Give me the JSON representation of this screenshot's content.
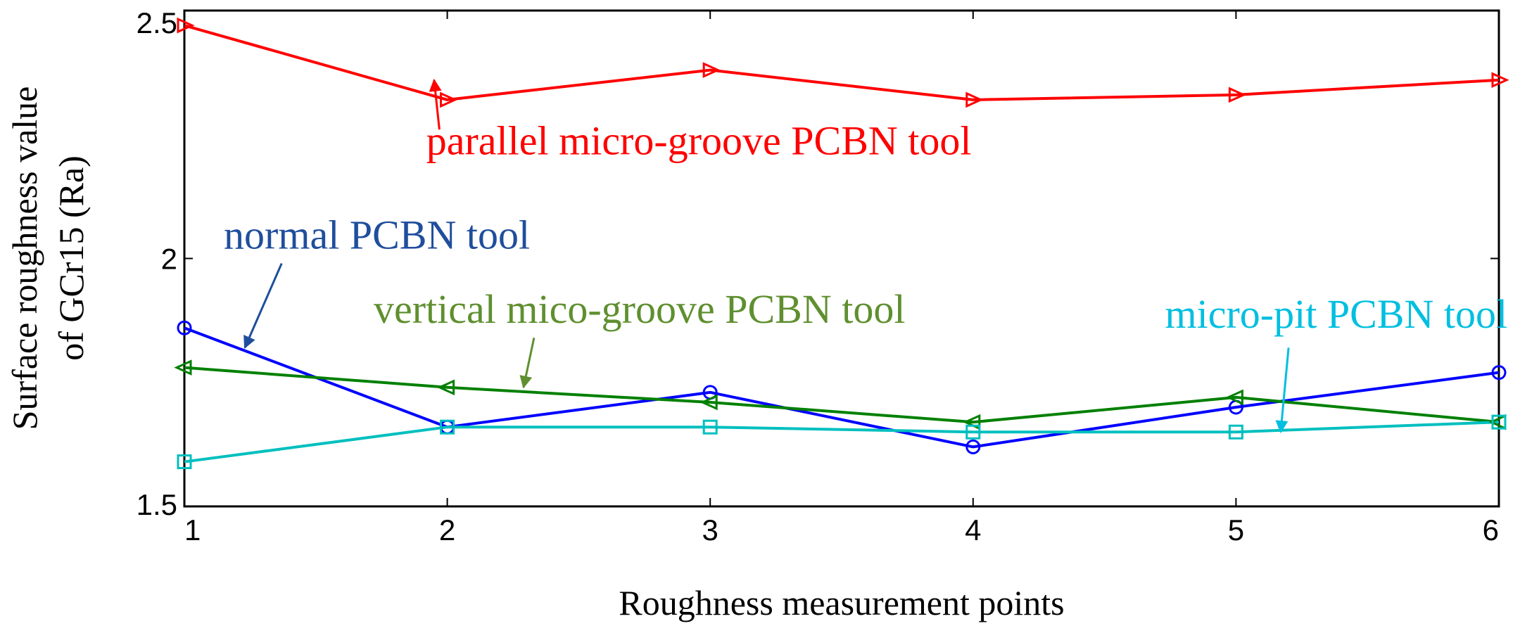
{
  "chart_data": {
    "type": "line",
    "title": "",
    "xlabel": "Roughness measurement points",
    "ylabel_line1": "Surface roughness value",
    "ylabel_line2": "of GCr15 (Ra)",
    "xlim": [
      1,
      6
    ],
    "ylim": [
      1.5,
      2.5
    ],
    "x": [
      1,
      2,
      3,
      4,
      5,
      6
    ],
    "x_ticks": [
      "1",
      "2",
      "3",
      "4",
      "5",
      "6"
    ],
    "y_ticks": [
      {
        "value": 1.5,
        "label": "1.5"
      },
      {
        "value": 2.0,
        "label": "2"
      },
      {
        "value": 2.5,
        "label": "2.5"
      }
    ],
    "grid": false,
    "series": [
      {
        "name": "parallel micro-groove PCBN tool",
        "color": "#ff0000",
        "marker": "triangle-right",
        "values": [
          2.47,
          2.32,
          2.38,
          2.32,
          2.33,
          2.36
        ],
        "label_at": [
          1.92,
          2.21
        ],
        "arrow_from": [
          1.97,
          2.26
        ],
        "arrow_to": [
          1.95,
          2.36
        ]
      },
      {
        "name": "normal PCBN tool",
        "color": "#0000ff",
        "label_color": "#1f4e9c",
        "marker": "circle",
        "values": [
          1.86,
          1.66,
          1.73,
          1.62,
          1.7,
          1.77
        ],
        "label_at": [
          1.15,
          2.02
        ],
        "arrow_from": [
          1.37,
          1.99
        ],
        "arrow_to": [
          1.23,
          1.82
        ]
      },
      {
        "name": "vertical mico-groove PCBN tool",
        "color": "#008000",
        "label_color": "#5f8f2f",
        "marker": "triangle-left",
        "values": [
          1.78,
          1.74,
          1.71,
          1.67,
          1.72,
          1.67
        ],
        "label_at": [
          1.72,
          1.87
        ],
        "arrow_from": [
          2.33,
          1.84
        ],
        "arrow_to": [
          2.29,
          1.74
        ]
      },
      {
        "name": "micro-pit PCBN tool",
        "color": "#00bfbf",
        "label_color": "#00bfe0",
        "marker": "square",
        "values": [
          1.59,
          1.66,
          1.66,
          1.65,
          1.65,
          1.67
        ],
        "label_at": [
          4.73,
          1.86
        ],
        "arrow_from": [
          5.2,
          1.82
        ],
        "arrow_to": [
          5.17,
          1.65
        ]
      }
    ]
  }
}
